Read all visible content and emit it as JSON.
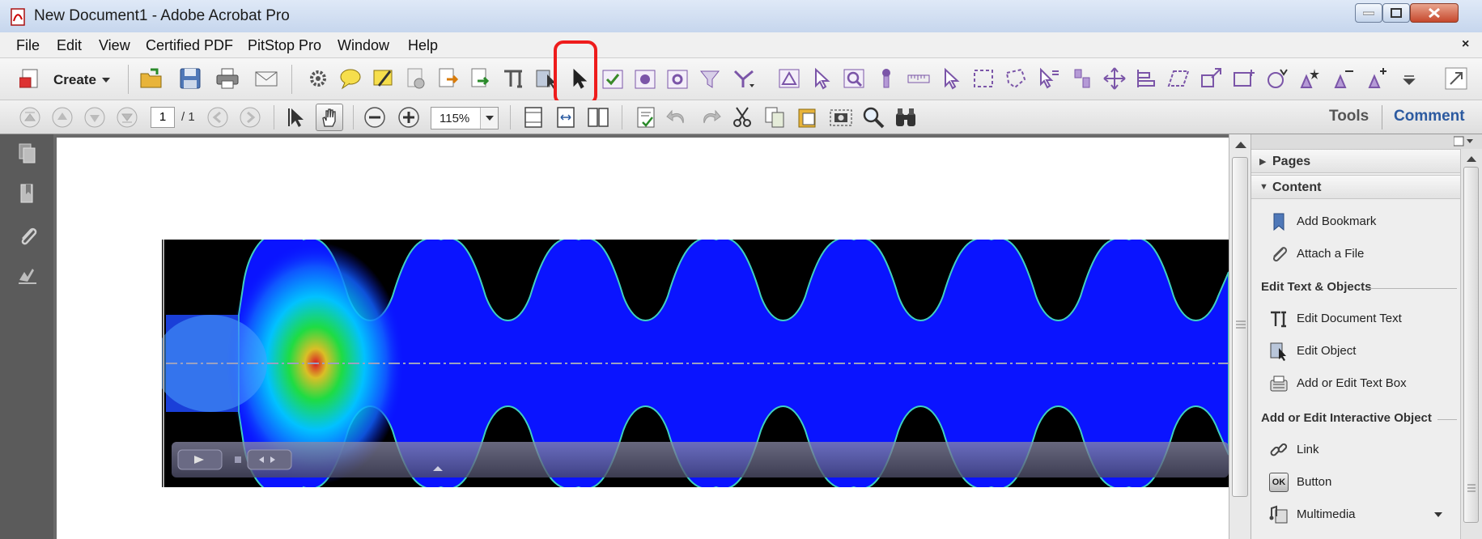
{
  "window": {
    "title": "New Document1 - Adobe Acrobat Pro"
  },
  "menubar": {
    "items": [
      "File",
      "Edit",
      "View",
      "Certified PDF",
      "PitStop Pro",
      "Window",
      "Help"
    ],
    "close_glyph": "×"
  },
  "toolbar1": {
    "create_label": "Create"
  },
  "toolbar2": {
    "current_page": "1",
    "page_total": "/ 1",
    "zoom": "115%",
    "tools_label": "Tools",
    "comment_label": "Comment"
  },
  "right_pane": {
    "pages_header": "Pages",
    "content_header": "Content",
    "content_items": [
      "Add Bookmark",
      "Attach a File"
    ],
    "section_edit": "Edit Text & Objects",
    "edit_items": [
      "Edit Document Text",
      "Edit Object",
      "Add or Edit Text Box"
    ],
    "section_interactive": "Add or Edit Interactive Object",
    "interactive_items": [
      "Link",
      "Button",
      "Multimedia"
    ],
    "button_icon_text": "OK"
  },
  "colors": {
    "highlight": "#ee1c1c",
    "comment_tab": "#2c5aa0",
    "sim_blue": "#0a14ff"
  }
}
